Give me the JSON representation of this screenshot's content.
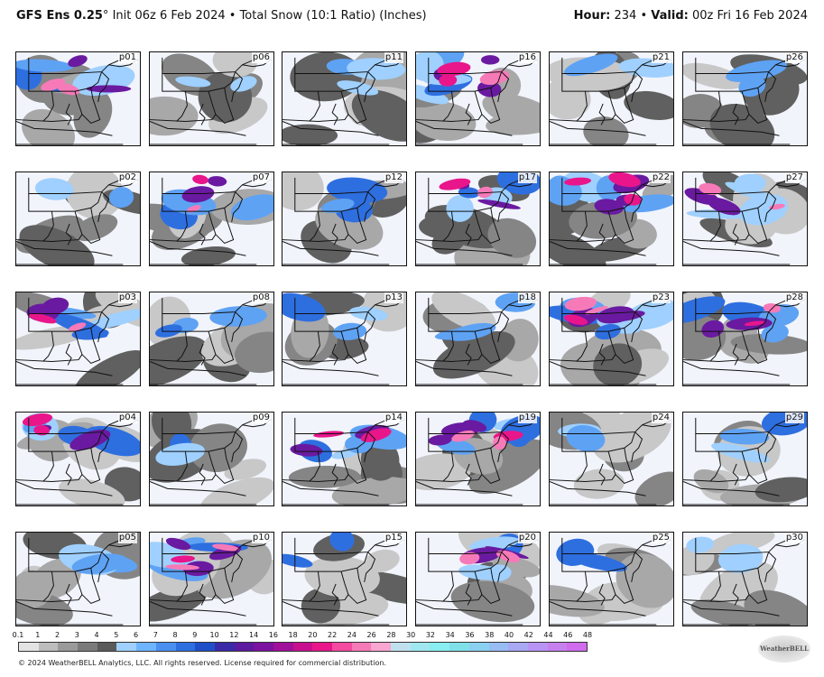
{
  "header": {
    "model": "GFS Ens 0.25",
    "degree": "°",
    "init": "Init 06z 6 Feb 2024",
    "bullet": "•",
    "product": "Total Snow (10:1 Ratio) (Inches)",
    "hour_label": "Hour:",
    "hour_value": "234",
    "valid_label": "Valid:",
    "valid_value": "00z Fri 16 Feb 2024"
  },
  "panels": [
    {
      "label": "p01",
      "intensity": 3
    },
    {
      "label": "p06",
      "intensity": 1
    },
    {
      "label": "p11",
      "intensity": 2
    },
    {
      "label": "p16",
      "intensity": 4
    },
    {
      "label": "p21",
      "intensity": 1
    },
    {
      "label": "p26",
      "intensity": 1
    },
    {
      "label": "p02",
      "intensity": 1
    },
    {
      "label": "p07",
      "intensity": 3
    },
    {
      "label": "p12",
      "intensity": 2
    },
    {
      "label": "p17",
      "intensity": 3
    },
    {
      "label": "p22",
      "intensity": 4
    },
    {
      "label": "p27",
      "intensity": 3
    },
    {
      "label": "p03",
      "intensity": 3
    },
    {
      "label": "p08",
      "intensity": 2
    },
    {
      "label": "p13",
      "intensity": 2
    },
    {
      "label": "p18",
      "intensity": 2
    },
    {
      "label": "p23",
      "intensity": 4
    },
    {
      "label": "p28",
      "intensity": 3
    },
    {
      "label": "p04",
      "intensity": 3
    },
    {
      "label": "p09",
      "intensity": 1
    },
    {
      "label": "p14",
      "intensity": 3
    },
    {
      "label": "p19",
      "intensity": 4
    },
    {
      "label": "p24",
      "intensity": 1
    },
    {
      "label": "p29",
      "intensity": 2
    },
    {
      "label": "p05",
      "intensity": 2
    },
    {
      "label": "p10",
      "intensity": 4
    },
    {
      "label": "p15",
      "intensity": 1
    },
    {
      "label": "p20",
      "intensity": 3
    },
    {
      "label": "p25",
      "intensity": 1
    },
    {
      "label": "p30",
      "intensity": 1
    }
  ],
  "colorbar": {
    "ticks": [
      "0.1",
      "1",
      "2",
      "3",
      "4",
      "5",
      "6",
      "7",
      "8",
      "9",
      "10",
      "12",
      "14",
      "16",
      "18",
      "20",
      "22",
      "24",
      "26",
      "28",
      "30",
      "32",
      "34",
      "36",
      "38",
      "40",
      "42",
      "44",
      "46",
      "48"
    ],
    "colors": [
      "#e3e3e3",
      "#bdbdbd",
      "#9a9a9a",
      "#7a7a7a",
      "#5a5a5a",
      "#9fd0ff",
      "#6fb4ff",
      "#4a90f0",
      "#2e6fe0",
      "#1f4fc8",
      "#3b2aa8",
      "#5b1aa0",
      "#7c12a0",
      "#a0109a",
      "#c8108f",
      "#e8168a",
      "#f44aa0",
      "#f77ab8",
      "#f9a6d0",
      "#c0e0f0",
      "#a0e8f0",
      "#88eef0",
      "#80e0e8",
      "#8ad0f0",
      "#98bcf4",
      "#a8a8f4",
      "#b894f4",
      "#c680f0",
      "#d06cee"
    ],
    "brand_colors": {
      "gray": "#8a8a8a",
      "blue": "#4a90f0",
      "purple": "#6a1aa0",
      "pink": "#e8168a",
      "water": "#f1f4fb"
    }
  },
  "footer": {
    "copyright": "© 2024 WeatherBELL Analytics, LLC. All rights reserved. License required for commercial distribution."
  },
  "logo": {
    "text": "WeatherBELL"
  }
}
